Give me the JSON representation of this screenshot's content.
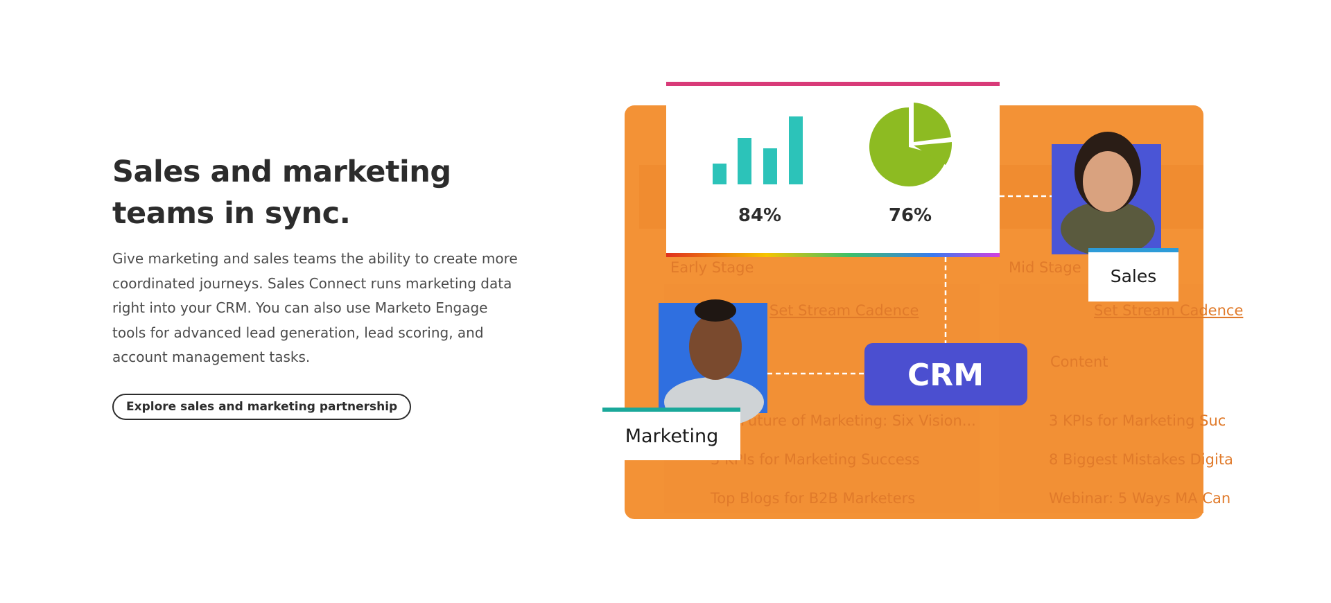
{
  "heading": "Sales and marketing teams in sync.",
  "body": "Give marketing and sales teams the ability to create more coordinated journeys. Sales Connect runs marketing data right into your CRM. You can also use Marketo Engage tools for advanced lead generation, lead scoring, and account management tasks.",
  "button": "Explore sales and marketing partnership",
  "illustration": {
    "stats": [
      "84%",
      "76%"
    ],
    "crm": "CRM",
    "sales_label": "Sales",
    "marketing_label": "Marketing",
    "background": {
      "columns": [
        "Early Stage",
        "Mid Stage"
      ],
      "links": [
        "Set Stream Cadence",
        "Set Stream Cadence"
      ],
      "tabs": [
        "Content"
      ],
      "left_items": [
        "Future of Marketing: Six Vision...",
        "3 KPIs for Marketing Success",
        "Top Blogs for B2B Marketers"
      ],
      "right_items": [
        "3 KPIs for Marketing Suc",
        "8 Biggest Mistakes Digita",
        "Webinar: 5 Ways MA Can"
      ]
    }
  }
}
